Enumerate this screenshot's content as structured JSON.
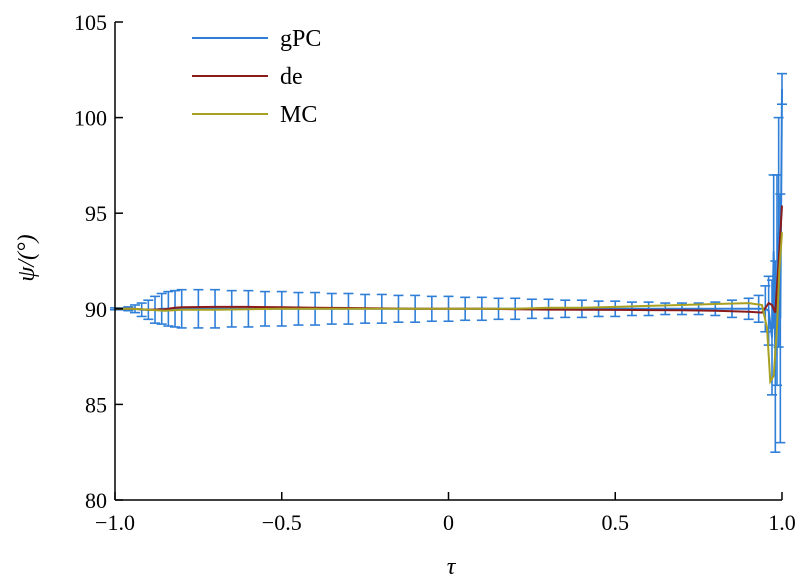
{
  "chart_data": {
    "type": "line",
    "title": "",
    "xlabel": "τ",
    "ylabel": "ψ/(°)",
    "xlim": [
      -1.0,
      1.0
    ],
    "ylim": [
      80,
      105
    ],
    "xticks": [
      -1.0,
      -0.5,
      0,
      0.5,
      1.0
    ],
    "xtick_labels": [
      "−1.0",
      "−0.5",
      "0",
      "0.5",
      "1.0"
    ],
    "yticks": [
      80,
      85,
      90,
      95,
      100,
      105
    ],
    "ytick_labels": [
      "80",
      "85",
      "90",
      "95",
      "100",
      "105"
    ],
    "grid": false,
    "legend_position": "top-left",
    "series": [
      {
        "name": "gPC",
        "color": "#2f7fd8",
        "x": [
          -1.0,
          -0.98,
          -0.96,
          -0.94,
          -0.92,
          -0.9,
          -0.88,
          -0.86,
          -0.84,
          -0.82,
          -0.8,
          -0.75,
          -0.7,
          -0.65,
          -0.6,
          -0.55,
          -0.5,
          -0.45,
          -0.4,
          -0.35,
          -0.3,
          -0.25,
          -0.2,
          -0.15,
          -0.1,
          -0.05,
          0.0,
          0.05,
          0.1,
          0.15,
          0.2,
          0.25,
          0.3,
          0.35,
          0.4,
          0.45,
          0.5,
          0.55,
          0.6,
          0.65,
          0.7,
          0.75,
          0.8,
          0.85,
          0.9,
          0.93,
          0.95,
          0.96,
          0.97,
          0.975,
          0.98,
          0.985,
          0.99,
          0.995,
          1.0
        ],
        "y": [
          90.0,
          90.0,
          90.0,
          90.0,
          89.95,
          89.95,
          89.95,
          90.0,
          90.0,
          90.0,
          90.0,
          90.0,
          90.0,
          90.0,
          90.0,
          90.0,
          90.0,
          90.0,
          90.0,
          90.0,
          90.0,
          90.0,
          90.0,
          90.0,
          90.0,
          90.0,
          90.0,
          90.0,
          90.0,
          90.0,
          90.0,
          90.0,
          90.0,
          90.0,
          90.0,
          90.0,
          90.0,
          90.0,
          90.0,
          90.0,
          90.0,
          90.0,
          90.0,
          90.0,
          90.0,
          90.0,
          90.0,
          89.9,
          88.5,
          93.0,
          87.5,
          91.5,
          94.0,
          89.5,
          101.5
        ],
        "err": [
          0.05,
          0.05,
          0.1,
          0.2,
          0.35,
          0.5,
          0.7,
          0.8,
          0.9,
          0.95,
          1.0,
          1.0,
          1.0,
          0.95,
          0.95,
          0.9,
          0.9,
          0.85,
          0.85,
          0.8,
          0.8,
          0.75,
          0.75,
          0.7,
          0.7,
          0.65,
          0.65,
          0.6,
          0.6,
          0.55,
          0.55,
          0.5,
          0.5,
          0.45,
          0.45,
          0.4,
          0.4,
          0.35,
          0.35,
          0.3,
          0.3,
          0.3,
          0.35,
          0.45,
          0.55,
          0.7,
          1.2,
          1.8,
          3.0,
          4.0,
          5.0,
          5.5,
          6.0,
          6.5,
          0.8
        ]
      },
      {
        "name": "de",
        "color": "#8b1a1a",
        "x": [
          -1.0,
          -0.95,
          -0.9,
          -0.85,
          -0.82,
          -0.8,
          -0.7,
          -0.6,
          -0.5,
          -0.4,
          -0.3,
          -0.2,
          -0.1,
          0.0,
          0.1,
          0.2,
          0.3,
          0.4,
          0.5,
          0.6,
          0.7,
          0.8,
          0.9,
          0.94,
          0.96,
          0.97,
          0.98,
          0.99,
          1.0
        ],
        "y": [
          90.0,
          90.0,
          89.95,
          89.98,
          90.05,
          90.08,
          90.1,
          90.1,
          90.08,
          90.06,
          90.04,
          90.02,
          90.0,
          90.0,
          90.0,
          89.98,
          89.96,
          89.95,
          89.94,
          89.93,
          89.92,
          89.9,
          89.85,
          89.8,
          90.3,
          90.2,
          89.8,
          92.5,
          95.4
        ]
      },
      {
        "name": "MC",
        "color": "#a8a020",
        "x": [
          -1.0,
          -0.95,
          -0.9,
          -0.85,
          -0.8,
          -0.7,
          -0.6,
          -0.5,
          -0.4,
          -0.3,
          -0.2,
          -0.1,
          0.0,
          0.1,
          0.2,
          0.3,
          0.4,
          0.5,
          0.6,
          0.7,
          0.8,
          0.9,
          0.94,
          0.955,
          0.965,
          0.975,
          0.985,
          0.992,
          1.0
        ],
        "y": [
          90.0,
          90.0,
          89.95,
          89.9,
          89.95,
          89.95,
          89.98,
          90.0,
          90.0,
          90.0,
          90.0,
          90.0,
          90.0,
          90.0,
          90.0,
          90.05,
          90.05,
          90.1,
          90.15,
          90.2,
          90.25,
          90.3,
          90.2,
          89.0,
          86.2,
          86.5,
          89.0,
          92.0,
          94.0
        ]
      }
    ]
  }
}
